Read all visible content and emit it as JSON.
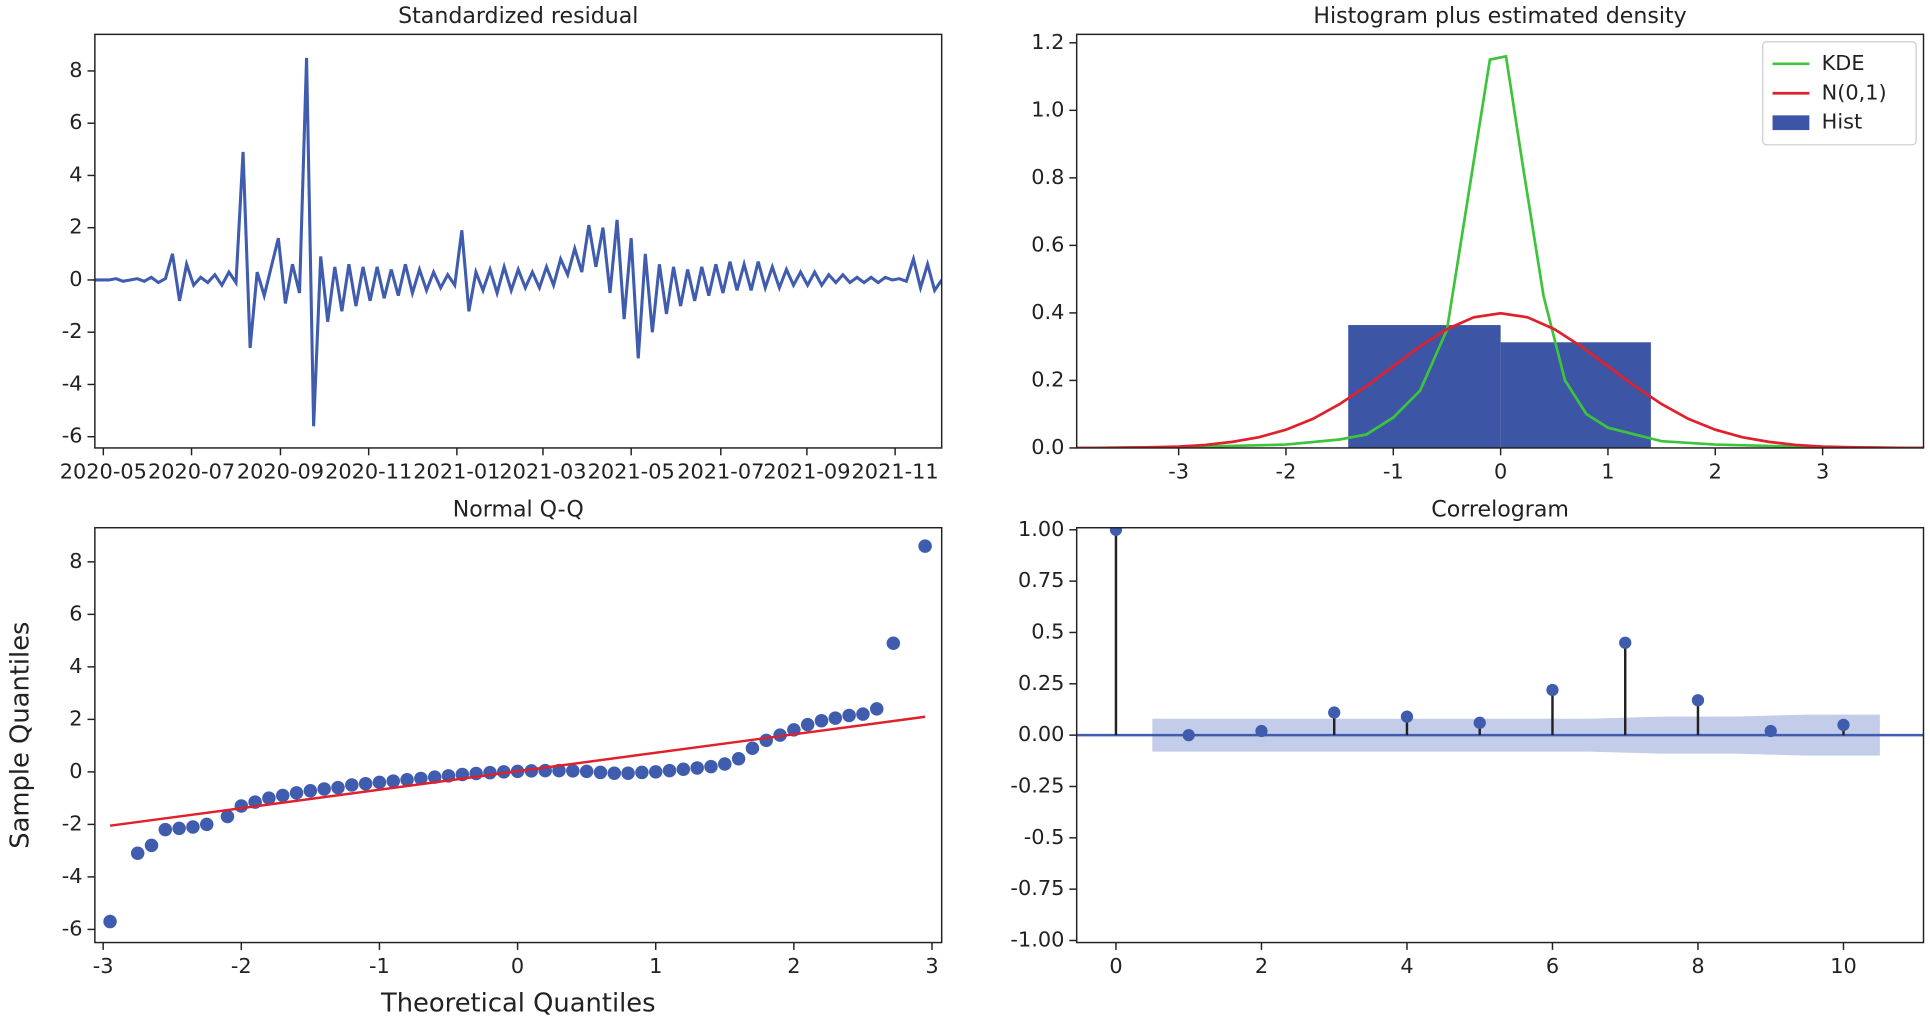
{
  "chart_data": [
    {
      "type": "line",
      "title": "Standardized residual",
      "color": "#3f5cae",
      "values": [
        0,
        0,
        0,
        0.05,
        -0.05,
        0,
        0.05,
        -0.05,
        0.1,
        -0.1,
        0.05,
        1.0,
        -0.8,
        0.6,
        -0.2,
        0.1,
        -0.1,
        0.2,
        -0.2,
        0.3,
        -0.1,
        4.9,
        -2.6,
        0.3,
        -0.6,
        0.5,
        1.6,
        -0.9,
        0.6,
        -0.5,
        8.5,
        -5.6,
        0.9,
        -1.6,
        0.5,
        -1.2,
        0.6,
        -1.0,
        0.5,
        -0.8,
        0.5,
        -0.7,
        0.4,
        -0.6,
        0.6,
        -0.5,
        0.4,
        -0.4,
        0.3,
        -0.3,
        0.2,
        -0.2,
        1.9,
        -1.2,
        0.3,
        -0.4,
        0.4,
        -0.5,
        0.5,
        -0.4,
        0.4,
        -0.3,
        0.3,
        -0.3,
        0.5,
        -0.2,
        0.8,
        0.2,
        1.2,
        0.3,
        2.1,
        0.5,
        2.0,
        -0.5,
        2.3,
        -1.5,
        1.6,
        -3.0,
        1.0,
        -2.0,
        0.6,
        -1.3,
        0.5,
        -1.0,
        0.4,
        -0.8,
        0.5,
        -0.6,
        0.6,
        -0.5,
        0.7,
        -0.4,
        0.6,
        -0.4,
        0.7,
        -0.3,
        0.5,
        -0.3,
        0.4,
        -0.2,
        0.3,
        -0.2,
        0.3,
        -0.2,
        0.2,
        -0.1,
        0.2,
        -0.1,
        0.1,
        -0.1,
        0.1,
        -0.1,
        0.1,
        0,
        0.05,
        -0.05,
        0.8,
        -0.3,
        0.6,
        -0.4,
        0
      ],
      "xlim": [
        0,
        120
      ],
      "xticks": [
        {
          "value": 1.2,
          "label": "2020-05"
        },
        {
          "value": 13.7,
          "label": "2020-07"
        },
        {
          "value": 26.3,
          "label": "2020-09"
        },
        {
          "value": 38.8,
          "label": "2020-11"
        },
        {
          "value": 51.3,
          "label": "2021-01"
        },
        {
          "value": 63.5,
          "label": "2021-03"
        },
        {
          "value": 76,
          "label": "2021-05"
        },
        {
          "value": 88.7,
          "label": "2021-07"
        },
        {
          "value": 100.9,
          "label": "2021-09"
        },
        {
          "value": 113.4,
          "label": "2021-11"
        }
      ],
      "ylim": [
        -6.43,
        9.4
      ],
      "yticks": [
        -6,
        -4,
        -2,
        0,
        2,
        4,
        6,
        8
      ]
    },
    {
      "type": "histogram",
      "title": "Histogram plus estimated density",
      "legend": "upper right",
      "series": [
        {
          "name": "KDE",
          "color": "#3cc43c",
          "x": [
            -4,
            -3,
            -2,
            -1.5,
            -1.25,
            -1,
            -0.75,
            -0.5,
            -0.3,
            -0.1,
            0.05,
            0.2,
            0.4,
            0.6,
            0.8,
            1,
            1.25,
            1.5,
            2,
            3,
            4
          ],
          "values": [
            0,
            0.002,
            0.01,
            0.025,
            0.04,
            0.09,
            0.17,
            0.35,
            0.75,
            1.15,
            1.16,
            0.85,
            0.45,
            0.2,
            0.1,
            0.06,
            0.04,
            0.02,
            0.01,
            0.002,
            0
          ]
        },
        {
          "name": "N(0,1)",
          "color": "#e0202a",
          "x": [
            -4,
            -3.75,
            -3.5,
            -3.25,
            -3,
            -2.75,
            -2.5,
            -2.25,
            -2,
            -1.75,
            -1.5,
            -1.25,
            -1,
            -0.75,
            -0.5,
            -0.25,
            0,
            0.25,
            0.5,
            0.75,
            1,
            1.25,
            1.5,
            1.75,
            2,
            2.25,
            2.5,
            2.75,
            3,
            3.25,
            3.5,
            3.75,
            4
          ],
          "values": [
            0,
            0,
            0.001,
            0.002,
            0.004,
            0.009,
            0.018,
            0.032,
            0.054,
            0.086,
            0.13,
            0.183,
            0.242,
            0.301,
            0.352,
            0.387,
            0.399,
            0.387,
            0.352,
            0.301,
            0.242,
            0.183,
            0.13,
            0.086,
            0.054,
            0.032,
            0.018,
            0.009,
            0.004,
            0.002,
            0.001,
            0,
            0
          ]
        },
        {
          "name": "Hist",
          "color": "#3c55a5",
          "bins": [
            -1.42,
            0,
            1.4
          ],
          "values": [
            0.364,
            0.313
          ]
        }
      ],
      "xlim": [
        -3.95,
        3.94
      ],
      "xticks": [
        -3,
        -2,
        -1,
        0,
        1,
        2,
        3
      ],
      "ylim": [
        0,
        1.225
      ],
      "yticks": [
        {
          "value": 0,
          "label": "0.0"
        },
        0.2,
        0.4,
        0.6,
        0.8,
        {
          "value": 1,
          "label": "1.0"
        },
        1.2
      ]
    },
    {
      "type": "scatter",
      "title": "Normal Q-Q",
      "xlabel": "Theoretical Quantiles",
      "ylabel": "Sample Quantiles",
      "color": "#3f5cae",
      "x": [
        -2.95,
        -2.75,
        -2.65,
        -2.55,
        -2.45,
        -2.35,
        -2.25,
        -2.1,
        -2.0,
        -1.9,
        -1.8,
        -1.7,
        -1.6,
        -1.5,
        -1.4,
        -1.3,
        -1.2,
        -1.1,
        -1.0,
        -0.9,
        -0.8,
        -0.7,
        -0.6,
        -0.5,
        -0.4,
        -0.3,
        -0.2,
        -0.1,
        0,
        0.1,
        0.2,
        0.3,
        0.4,
        0.5,
        0.6,
        0.7,
        0.8,
        0.9,
        1.0,
        1.1,
        1.2,
        1.3,
        1.4,
        1.5,
        1.6,
        1.7,
        1.8,
        1.9,
        2.0,
        2.1,
        2.2,
        2.3,
        2.4,
        2.5,
        2.6,
        2.72,
        2.95
      ],
      "values": [
        -5.7,
        -3.1,
        -2.8,
        -2.2,
        -2.15,
        -2.1,
        -2.0,
        -1.7,
        -1.3,
        -1.15,
        -1.0,
        -0.9,
        -0.8,
        -0.72,
        -0.65,
        -0.6,
        -0.5,
        -0.45,
        -0.4,
        -0.35,
        -0.3,
        -0.25,
        -0.2,
        -0.15,
        -0.1,
        -0.06,
        -0.03,
        0,
        0.02,
        0.04,
        0.05,
        0.05,
        0.04,
        0.02,
        -0.02,
        -0.05,
        -0.05,
        -0.02,
        0,
        0.05,
        0.1,
        0.15,
        0.2,
        0.3,
        0.5,
        0.9,
        1.2,
        1.4,
        1.6,
        1.8,
        1.95,
        2.05,
        2.15,
        2.2,
        2.4,
        4.9,
        8.6
      ],
      "line": {
        "color": "#e0202a",
        "x": [
          -2.95,
          2.95
        ],
        "values": [
          -2.05,
          2.1
        ]
      },
      "xlim": [
        -3.06,
        3.07
      ],
      "xticks": [
        -3,
        -2,
        -1,
        0,
        1,
        2,
        3
      ],
      "ylim": [
        -6.5,
        9.3
      ],
      "yticks": [
        -6,
        -4,
        -2,
        0,
        2,
        4,
        6,
        8
      ]
    },
    {
      "type": "stem",
      "title": "Correlogram",
      "color": "#3f5cae",
      "x": [
        0,
        1,
        2,
        3,
        4,
        5,
        6,
        7,
        8,
        9,
        10
      ],
      "values": [
        1.0,
        0.0,
        0.02,
        0.11,
        0.09,
        0.06,
        0.22,
        0.45,
        0.17,
        0.02,
        0.05
      ],
      "confint": {
        "color": "#aab8e0",
        "x": [
          0.5,
          1.5,
          2.5,
          3.5,
          4.5,
          5.5,
          6.5,
          7.5,
          8.5,
          9.5,
          10.5
        ],
        "upper": [
          0.08,
          0.08,
          0.08,
          0.08,
          0.08,
          0.08,
          0.08,
          0.09,
          0.09,
          0.1,
          0.1
        ],
        "lower": [
          -0.08,
          -0.08,
          -0.08,
          -0.08,
          -0.08,
          -0.08,
          -0.08,
          -0.09,
          -0.09,
          -0.1,
          -0.1
        ]
      },
      "xlim": [
        -0.54,
        11.1
      ],
      "xticks": [
        0,
        2,
        4,
        6,
        8,
        10
      ],
      "ylim": [
        -1.01,
        1.01
      ],
      "yticks": [
        {
          "value": 1,
          "label": "1.00"
        },
        0.75,
        0.5,
        0.25,
        {
          "value": 0,
          "label": "0.00"
        },
        -0.25,
        -0.5,
        -0.75,
        {
          "value": -1,
          "label": "-1.00"
        }
      ]
    }
  ]
}
